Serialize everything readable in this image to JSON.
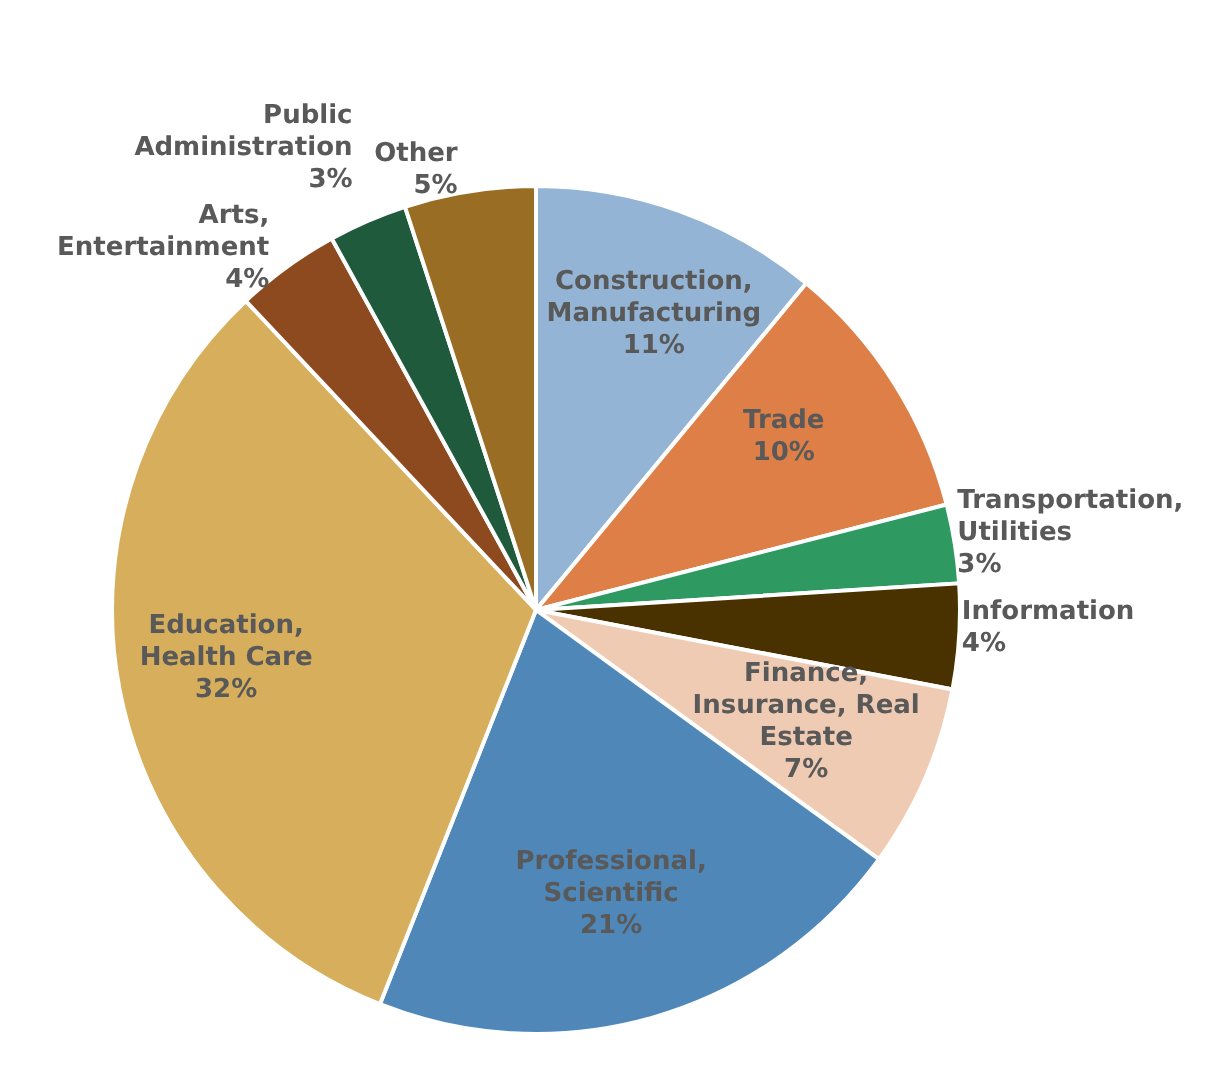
{
  "chart_data": {
    "type": "pie",
    "categories": [
      "Construction, Manufacturing",
      "Trade",
      "Transportation, Utilities",
      "Information",
      "Finance, Insurance, Real Estate",
      "Professional, Scientific",
      "Education, Health Care",
      "Arts, Entertainment",
      "Public Administration",
      "Other"
    ],
    "values": [
      11,
      10,
      3,
      4,
      7,
      21,
      32,
      4,
      3,
      5
    ],
    "value_labels": [
      "11%",
      "10%",
      "3%",
      "4%",
      "7%",
      "21%",
      "32%",
      "4%",
      "3%",
      "5%"
    ],
    "colors": [
      "#93b4d4",
      "#dd7f47",
      "#2e9a62",
      "#4a3200",
      "#f0cbb3",
      "#4f87b8",
      "#d6ae5c",
      "#8e4a1f",
      "#1f5a3c",
      "#9a6d24"
    ],
    "legend": false
  }
}
